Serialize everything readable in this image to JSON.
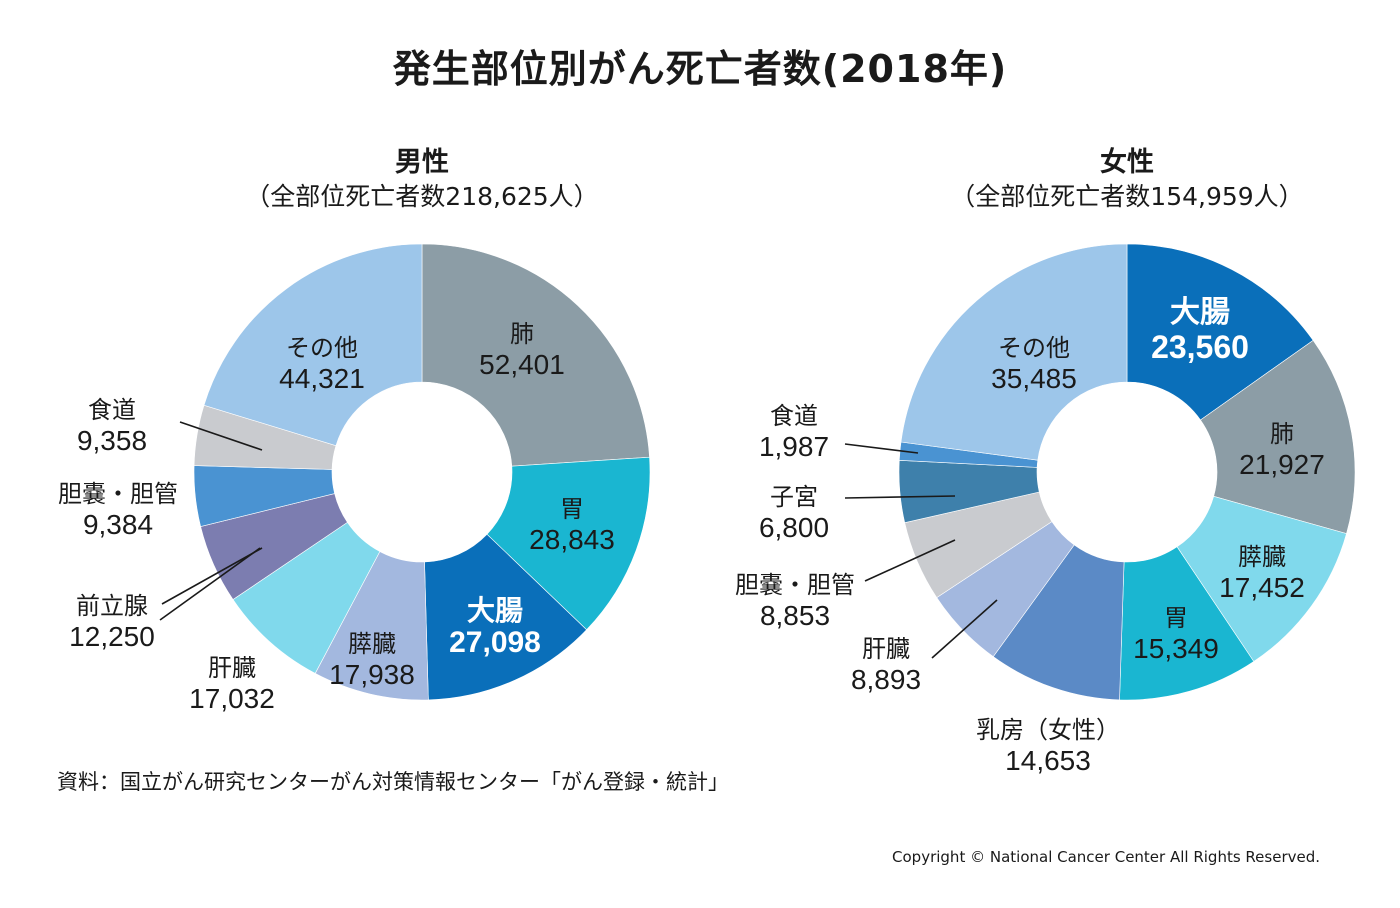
{
  "title": "発生部位別がん死亡者数(2018年)",
  "source": "資料：国立がん研究センターがん対策情報センター「がん登録・統計」",
  "copyright": "Copyright © National Cancer Center All Rights Reserved.",
  "colors": {
    "sonota": "#9dc6ea",
    "lung": "#8c9da6",
    "stomach": "#1ab6d1",
    "colon": "#0a6fba",
    "pancreas": "#a3b8df",
    "liver": "#80d9ec",
    "prostate": "#7c7db0",
    "gallbladder": "#4a93d2",
    "esophagus": "#c9cbcf",
    "breast": "#5b8ac6",
    "uterus": "#3e80ab",
    "pancreas_f": "#80d9ec",
    "gallbladder_f": "#c9cbcf",
    "liver_f": "#a3b8df",
    "esophagus_f": "#4a93d2",
    "label_line": "#1a1a1a"
  },
  "chart_data": [
    {
      "type": "pie",
      "title": "男性",
      "subtitle": "（全部位死亡者数218,625人）",
      "total": 218625,
      "slices": [
        {
          "name": "肺",
          "value": "52,401",
          "v": 52401,
          "color": "lung"
        },
        {
          "name": "胃",
          "value": "28,843",
          "v": 28843,
          "color": "stomach"
        },
        {
          "name": "大腸",
          "value": "27,098",
          "v": 27098,
          "color": "colon",
          "highlight": true
        },
        {
          "name": "膵臓",
          "value": "17,938",
          "v": 17938,
          "color": "pancreas"
        },
        {
          "name": "肝臓",
          "value": "17,032",
          "v": 17032,
          "color": "liver"
        },
        {
          "name": "前立腺",
          "value": "12,250",
          "v": 12250,
          "color": "prostate"
        },
        {
          "name": "胆嚢・胆管",
          "value": "9,384",
          "v": 9384,
          "color": "gallbladder"
        },
        {
          "name": "食道",
          "value": "9,358",
          "v": 9358,
          "color": "esophagus"
        },
        {
          "name": "その他",
          "value": "44,321",
          "v": 44321,
          "color": "sonota"
        }
      ]
    },
    {
      "type": "pie",
      "title": "女性",
      "subtitle": "（全部位死亡者数154,959人）",
      "total": 154959,
      "slices": [
        {
          "name": "大腸",
          "value": "23,560",
          "v": 23560,
          "color": "colon",
          "highlight": true
        },
        {
          "name": "肺",
          "value": "21,927",
          "v": 21927,
          "color": "lung"
        },
        {
          "name": "膵臓",
          "value": "17,452",
          "v": 17452,
          "color": "pancreas_f"
        },
        {
          "name": "胃",
          "value": "15,349",
          "v": 15349,
          "color": "stomach"
        },
        {
          "name": "乳房（女性）",
          "value": "14,653",
          "v": 14653,
          "color": "breast"
        },
        {
          "name": "肝臓",
          "value": "8,893",
          "v": 8893,
          "color": "liver_f"
        },
        {
          "name": "胆嚢・胆管",
          "value": "8,853",
          "v": 8853,
          "color": "gallbladder_f"
        },
        {
          "name": "子宮",
          "value": "6,800",
          "v": 6800,
          "color": "uterus"
        },
        {
          "name": "食道",
          "value": "1,987",
          "v": 1987,
          "color": "esophagus_f"
        },
        {
          "name": "その他",
          "value": "35,485",
          "v": 35485,
          "color": "sonota"
        }
      ]
    }
  ]
}
